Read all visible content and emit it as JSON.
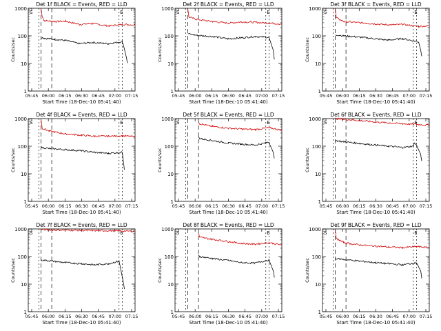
{
  "chart_data": [
    {
      "type": "line",
      "title": "Det 1f BLACK = Events, RED = LLD",
      "ylabel": "Counts/sec",
      "xlabel": "Start Time (18-Dec-10 05:41:40)",
      "yscale": "log",
      "ylim": [
        1,
        1000
      ],
      "yticks": [
        "1",
        "10",
        "100",
        "1000"
      ],
      "xlim": [
        0,
        100
      ],
      "xticks": [
        "05:45",
        "06:00",
        "06:15",
        "06:30",
        "06:45",
        "07:00",
        "07:15"
      ],
      "markers": {
        "start": "S",
        "end": "E"
      },
      "series": [
        {
          "color": "#d00000",
          "values": [
            [
              12,
              950
            ],
            [
              13,
              500
            ],
            [
              15,
              360
            ],
            [
              25,
              330
            ],
            [
              35,
              340
            ],
            [
              48,
              260
            ],
            [
              60,
              280
            ],
            [
              75,
              230
            ],
            [
              90,
              260
            ],
            [
              100,
              250
            ]
          ]
        },
        {
          "color": "#000000",
          "values": [
            [
              12,
              90
            ],
            [
              15,
              82
            ],
            [
              25,
              75
            ],
            [
              35,
              68
            ],
            [
              48,
              52
            ],
            [
              60,
              58
            ],
            [
              75,
              52
            ],
            [
              88,
              62
            ],
            [
              89,
              48
            ],
            [
              92,
              16
            ],
            [
              93,
              10
            ]
          ]
        }
      ]
    },
    {
      "type": "line",
      "title": "Det 2f BLACK = Events, RED = LLD",
      "ylabel": "Counts/sec",
      "xlabel": "Start Time (18-Dec-10 05:41:40)",
      "yscale": "log",
      "ylim": [
        1,
        1000
      ],
      "yticks": [
        "1",
        "10",
        "100",
        "1000"
      ],
      "xlim": [
        0,
        100
      ],
      "xticks": [
        "05:45",
        "06:00",
        "06:15",
        "06:30",
        "06:45",
        "07:00",
        "07:15"
      ],
      "markers": {
        "start": "S",
        "end": "E"
      },
      "series": [
        {
          "color": "#d00000",
          "values": [
            [
              12,
              950
            ],
            [
              13,
              480
            ],
            [
              20,
              400
            ],
            [
              35,
              330
            ],
            [
              50,
              290
            ],
            [
              62,
              320
            ],
            [
              75,
              310
            ],
            [
              88,
              290
            ],
            [
              100,
              270
            ]
          ]
        },
        {
          "color": "#000000",
          "values": [
            [
              12,
              120
            ],
            [
              20,
              105
            ],
            [
              35,
              95
            ],
            [
              50,
              78
            ],
            [
              62,
              85
            ],
            [
              75,
              95
            ],
            [
              88,
              88
            ],
            [
              92,
              30
            ],
            [
              93,
              14
            ]
          ]
        }
      ]
    },
    {
      "type": "line",
      "title": "Det 3f BLACK = Events, RED = LLD",
      "ylabel": "Counts/sec",
      "xlabel": "Start Time (18-Dec-10 05:41:40)",
      "yscale": "log",
      "ylim": [
        1,
        1000
      ],
      "yticks": [
        "1",
        "10",
        "100",
        "1000"
      ],
      "xlim": [
        0,
        100
      ],
      "xticks": [
        "05:45",
        "06:00",
        "06:15",
        "06:30",
        "06:45",
        "07:00",
        "07:15"
      ],
      "markers": {
        "start": "S",
        "end": "E"
      },
      "series": [
        {
          "color": "#d00000",
          "values": [
            [
              12,
              950
            ],
            [
              13,
              450
            ],
            [
              20,
              330
            ],
            [
              35,
              300
            ],
            [
              50,
              270
            ],
            [
              62,
              250
            ],
            [
              75,
              260
            ],
            [
              90,
              220
            ],
            [
              100,
              230
            ]
          ]
        },
        {
          "color": "#000000",
          "values": [
            [
              12,
              110
            ],
            [
              20,
              100
            ],
            [
              35,
              90
            ],
            [
              50,
              78
            ],
            [
              62,
              70
            ],
            [
              75,
              80
            ],
            [
              90,
              60
            ],
            [
              92,
              30
            ],
            [
              93,
              18
            ]
          ]
        }
      ]
    },
    {
      "type": "line",
      "title": "Det 4f BLACK = Events, RED = LLD",
      "ylabel": "Counts/sec",
      "xlabel": "Start Time (18-Dec-10 05:41:40)",
      "yscale": "log",
      "ylim": [
        1,
        1000
      ],
      "yticks": [
        "1",
        "10",
        "100",
        "1000"
      ],
      "xlim": [
        0,
        100
      ],
      "xticks": [
        "05:45",
        "06:00",
        "06:15",
        "06:30",
        "06:45",
        "07:00",
        "07:15"
      ],
      "markers": {
        "start": "S",
        "end": "E"
      },
      "series": [
        {
          "color": "#d00000",
          "values": [
            [
              12,
              900
            ],
            [
              13,
              450
            ],
            [
              20,
              350
            ],
            [
              35,
              280
            ],
            [
              50,
              250
            ],
            [
              62,
              230
            ],
            [
              75,
              230
            ],
            [
              88,
              240
            ],
            [
              100,
              220
            ]
          ]
        },
        {
          "color": "#000000",
          "values": [
            [
              12,
              90
            ],
            [
              20,
              82
            ],
            [
              35,
              75
            ],
            [
              50,
              68
            ],
            [
              62,
              60
            ],
            [
              75,
              55
            ],
            [
              88,
              60
            ],
            [
              89,
              30
            ],
            [
              90,
              14
            ]
          ]
        }
      ]
    },
    {
      "type": "line",
      "title": "Det 5f BLACK = Events, RED = LLD",
      "ylabel": "Counts/sec",
      "xlabel": "Start Time (18-Dec-10 05:41:40)",
      "yscale": "log",
      "ylim": [
        1,
        1000
      ],
      "yticks": [
        "1",
        "10",
        "100",
        "1000"
      ],
      "xlim": [
        0,
        100
      ],
      "xticks": [
        "05:45",
        "06:00",
        "06:15",
        "06:30",
        "06:45",
        "07:00",
        "07:15"
      ],
      "markers": {
        "start": "S",
        "end": "E"
      },
      "series": [
        {
          "color": "#d00000",
          "values": [
            [
              22,
              800
            ],
            [
              23,
              650
            ],
            [
              35,
              520
            ],
            [
              50,
              450
            ],
            [
              62,
              420
            ],
            [
              75,
              400
            ],
            [
              88,
              470
            ],
            [
              100,
              380
            ]
          ]
        },
        {
          "color": "#000000",
          "values": [
            [
              22,
              220
            ],
            [
              23,
              190
            ],
            [
              35,
              160
            ],
            [
              50,
              130
            ],
            [
              62,
              120
            ],
            [
              75,
              110
            ],
            [
              88,
              140
            ],
            [
              89,
              110
            ],
            [
              92,
              60
            ],
            [
              93,
              35
            ]
          ]
        }
      ]
    },
    {
      "type": "line",
      "title": "Det 6f BLACK = Events, RED = LLD",
      "ylabel": "Counts/sec",
      "xlabel": "Start Time (18-Dec-10 05:41:40)",
      "yscale": "log",
      "ylim": [
        1,
        1000
      ],
      "yticks": [
        "1",
        "10",
        "100",
        "1000"
      ],
      "xlim": [
        0,
        100
      ],
      "xticks": [
        "05:45",
        "06:00",
        "06:15",
        "06:30",
        "06:45",
        "07:00",
        "07:15"
      ],
      "markers": {
        "start": "S",
        "end": "E"
      },
      "series": [
        {
          "color": "#d00000",
          "values": [
            [
              12,
              1000
            ],
            [
              20,
              950
            ],
            [
              35,
              850
            ],
            [
              50,
              750
            ],
            [
              62,
              700
            ],
            [
              75,
              650
            ],
            [
              88,
              620
            ],
            [
              100,
              580
            ]
          ]
        },
        {
          "color": "#000000",
          "values": [
            [
              12,
              160
            ],
            [
              20,
              145
            ],
            [
              35,
              125
            ],
            [
              50,
              110
            ],
            [
              62,
              100
            ],
            [
              75,
              90
            ],
            [
              85,
              100
            ],
            [
              86,
              130
            ],
            [
              88,
              110
            ],
            [
              92,
              50
            ],
            [
              93,
              28
            ]
          ]
        }
      ]
    },
    {
      "type": "line",
      "title": "Det 7f BLACK = Events, RED = LLD",
      "ylabel": "Counts/sec",
      "xlabel": "Start Time (18-Dec-10 05:41:40)",
      "yscale": "log",
      "ylim": [
        1,
        1000
      ],
      "yticks": [
        "1",
        "10",
        "100",
        "1000"
      ],
      "xlim": [
        0,
        100
      ],
      "xticks": [
        "05:45",
        "06:00",
        "06:15",
        "06:30",
        "06:45",
        "07:00",
        "07:15"
      ],
      "markers": {
        "start": "S",
        "end": "E"
      },
      "series": [
        {
          "color": "#d00000",
          "values": [
            [
              12,
              950
            ],
            [
              25,
              920
            ],
            [
              40,
              900
            ],
            [
              55,
              880
            ],
            [
              70,
              870
            ],
            [
              85,
              850
            ],
            [
              100,
              820
            ]
          ]
        },
        {
          "color": "#000000",
          "values": [
            [
              12,
              75
            ],
            [
              20,
              70
            ],
            [
              35,
              60
            ],
            [
              50,
              55
            ],
            [
              62,
              50
            ],
            [
              75,
              55
            ],
            [
              85,
              68
            ],
            [
              86,
              45
            ],
            [
              89,
              12
            ],
            [
              90,
              7
            ]
          ]
        }
      ]
    },
    {
      "type": "line",
      "title": "Det 8f BLACK = Events, RED = LLD",
      "ylabel": "Counts/sec",
      "xlabel": "Start Time (18-Dec-10 05:41:40)",
      "yscale": "log",
      "ylim": [
        1,
        1000
      ],
      "yticks": [
        "1",
        "10",
        "100",
        "1000"
      ],
      "xlim": [
        0,
        100
      ],
      "xticks": [
        "05:45",
        "06:00",
        "06:15",
        "06:30",
        "06:45",
        "07:00",
        "07:15"
      ],
      "markers": {
        "start": "S",
        "end": "E"
      },
      "series": [
        {
          "color": "#d00000",
          "values": [
            [
              22,
              700
            ],
            [
              23,
              500
            ],
            [
              35,
              420
            ],
            [
              50,
              350
            ],
            [
              62,
              300
            ],
            [
              75,
              280
            ],
            [
              88,
              320
            ],
            [
              100,
              260
            ]
          ]
        },
        {
          "color": "#000000",
          "values": [
            [
              22,
              110
            ],
            [
              23,
              100
            ],
            [
              35,
              85
            ],
            [
              50,
              72
            ],
            [
              62,
              60
            ],
            [
              75,
              58
            ],
            [
              88,
              75
            ],
            [
              89,
              60
            ],
            [
              92,
              30
            ],
            [
              93,
              18
            ]
          ]
        }
      ]
    },
    {
      "type": "line",
      "title": "Det 9f BLACK = Events, RED = LLD",
      "ylabel": "Counts/sec",
      "xlabel": "Start Time (18-Dec-10 05:41:40)",
      "yscale": "log",
      "ylim": [
        1,
        1000
      ],
      "yticks": [
        "1",
        "10",
        "100",
        "1000"
      ],
      "xlim": [
        0,
        100
      ],
      "xticks": [
        "05:45",
        "06:00",
        "06:15",
        "06:30",
        "06:45",
        "07:00",
        "07:15"
      ],
      "markers": {
        "start": "S",
        "end": "E"
      },
      "series": [
        {
          "color": "#d00000",
          "values": [
            [
              12,
              900
            ],
            [
              13,
              450
            ],
            [
              20,
              320
            ],
            [
              35,
              260
            ],
            [
              50,
              240
            ],
            [
              62,
              220
            ],
            [
              75,
              210
            ],
            [
              88,
              230
            ],
            [
              100,
              210
            ]
          ]
        },
        {
          "color": "#000000",
          "values": [
            [
              12,
              85
            ],
            [
              20,
              78
            ],
            [
              35,
              68
            ],
            [
              50,
              60
            ],
            [
              62,
              55
            ],
            [
              75,
              50
            ],
            [
              88,
              60
            ],
            [
              92,
              30
            ],
            [
              93,
              16
            ]
          ]
        }
      ]
    }
  ]
}
